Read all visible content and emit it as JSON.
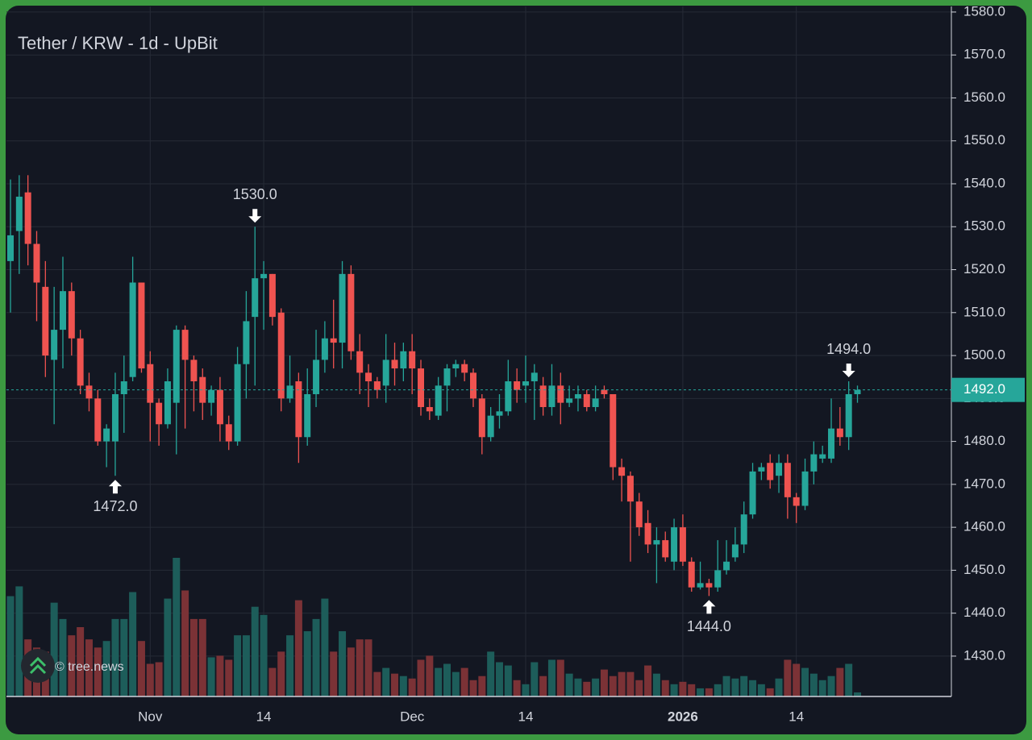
{
  "chart_data": {
    "type": "candlestick",
    "title": "Tether / KRW - 1d - UpBit",
    "watermark": "© tree.news",
    "categories": [
      null,
      null,
      null,
      null,
      null,
      null,
      null,
      null,
      null,
      null,
      null,
      null,
      null,
      null,
      null,
      null,
      "Nov",
      null,
      null,
      null,
      null,
      null,
      null,
      null,
      null,
      null,
      null,
      null,
      null,
      "14",
      null,
      null,
      null,
      null,
      null,
      null,
      null,
      null,
      null,
      null,
      null,
      null,
      null,
      null,
      null,
      null,
      "Dec",
      null,
      null,
      null,
      null,
      null,
      null,
      null,
      null,
      null,
      null,
      null,
      null,
      "14",
      null,
      null,
      null,
      null,
      null,
      null,
      null,
      null,
      null,
      null,
      null,
      null,
      null,
      null,
      null,
      null,
      null,
      "2026",
      null,
      null,
      null,
      null,
      null,
      null,
      null,
      null,
      null,
      null,
      null,
      null,
      "14",
      null,
      null,
      null,
      null,
      null,
      null,
      null
    ],
    "open": [
      1522,
      1529,
      1538,
      1526,
      1516,
      1499,
      1506,
      1515,
      1504,
      1493,
      1490,
      1480,
      1480,
      1491,
      1495,
      1517,
      1498,
      1489,
      1484,
      1489,
      1506,
      1499,
      1495,
      1489,
      1492,
      1484,
      1480,
      1498,
      1509,
      1518,
      1519,
      1510,
      1490,
      1494,
      1481,
      1491,
      1499,
      1504,
      1503,
      1519,
      1501,
      1496,
      1494,
      1493,
      1499,
      1497,
      1501,
      1497,
      1488,
      1486,
      1493,
      1497,
      1498,
      1496,
      1490,
      1481,
      1486,
      1487,
      1494,
      1493,
      1494,
      1493,
      1488,
      1493,
      1489,
      1490,
      1491,
      1488,
      1492,
      1491,
      1474,
      1472,
      1466,
      1461,
      1456,
      1457,
      1452,
      1460,
      1452,
      1446,
      1447,
      1446,
      1450,
      1453,
      1456,
      1463,
      1473,
      1475,
      1472,
      1475,
      1467,
      1465,
      1473,
      1476,
      1476,
      1483,
      1481,
      1491
    ],
    "high": [
      1541,
      1542,
      1542,
      1529,
      1522,
      1516,
      1523,
      1517,
      1506,
      1496,
      1492,
      1484,
      1496,
      1500,
      1523,
      1517,
      1501,
      1490,
      1497,
      1507,
      1507,
      1500,
      1497,
      1493,
      1495,
      1486,
      1502,
      1515,
      1530,
      1522,
      1519,
      1511,
      1500,
      1496,
      1497,
      1506,
      1508,
      1513,
      1522,
      1521,
      1505,
      1498,
      1495,
      1505,
      1503,
      1503,
      1505,
      1499,
      1490,
      1495,
      1498,
      1499,
      1499,
      1497,
      1491,
      1488,
      1491,
      1499,
      1497,
      1500,
      1498,
      1495,
      1498,
      1496,
      1493,
      1493,
      1492,
      1493,
      1493,
      1491,
      1476,
      1473,
      1468,
      1464,
      1460,
      1459,
      1462,
      1463,
      1453,
      1452,
      1448,
      1457,
      1457,
      1460,
      1466,
      1475,
      1475,
      1477,
      1477,
      1477,
      1468,
      1476,
      1480,
      1479,
      1490,
      1488,
      1494,
      1493
    ],
    "low": [
      1510,
      1519,
      1521,
      1508,
      1495,
      1484,
      1497,
      1500,
      1491,
      1487,
      1479,
      1474,
      1472,
      1482,
      1494,
      1496,
      1480,
      1479,
      1483,
      1477,
      1483,
      1487,
      1485,
      1486,
      1480,
      1478,
      1479,
      1490,
      1493,
      1506,
      1507,
      1487,
      1489,
      1475,
      1479,
      1488,
      1496,
      1497,
      1497,
      1499,
      1491,
      1488,
      1490,
      1489,
      1493,
      1494,
      1491,
      1486,
      1485,
      1485,
      1487,
      1495,
      1494,
      1488,
      1477,
      1480,
      1483,
      1486,
      1489,
      1489,
      1485,
      1486,
      1486,
      1484,
      1488,
      1487,
      1487,
      1487,
      1490,
      1471,
      1466,
      1452,
      1458,
      1454,
      1447,
      1452,
      1450,
      1451,
      1445,
      1445.5,
      1444,
      1445,
      1449,
      1452,
      1454,
      1462,
      1471,
      1469,
      1468,
      1462,
      1461,
      1464,
      1470,
      1475,
      1475,
      1479,
      1478,
      1489
    ],
    "close": [
      1528,
      1537,
      1526,
      1517,
      1500,
      1506,
      1515,
      1504,
      1493,
      1490,
      1480,
      1483,
      1491,
      1494,
      1517,
      1497,
      1489,
      1484,
      1494,
      1506,
      1499,
      1494,
      1489,
      1492,
      1484,
      1480,
      1498,
      1508,
      1518,
      1519,
      1509,
      1490,
      1493,
      1481,
      1491,
      1499,
      1504,
      1503,
      1519,
      1501,
      1496,
      1494,
      1492,
      1499,
      1497,
      1501,
      1497,
      1488,
      1487,
      1493,
      1497,
      1498,
      1496,
      1490,
      1481,
      1486,
      1487,
      1494,
      1492,
      1494,
      1496,
      1488,
      1493,
      1489,
      1490,
      1491,
      1488,
      1490,
      1491,
      1474,
      1472,
      1466,
      1460,
      1456,
      1457,
      1453,
      1460,
      1452,
      1446,
      1447,
      1446,
      1450,
      1452,
      1456,
      1463,
      1473,
      1474,
      1471,
      1475,
      1467,
      1465,
      1473,
      1477,
      1477,
      1483,
      1481,
      1491,
      1492
    ],
    "volume": [
      123,
      135,
      70,
      60,
      55,
      115,
      95,
      75,
      85,
      70,
      60,
      68,
      95,
      95,
      128,
      68,
      40,
      42,
      120,
      170,
      130,
      95,
      95,
      48,
      50,
      45,
      75,
      75,
      110,
      100,
      35,
      55,
      75,
      118,
      80,
      95,
      120,
      55,
      80,
      60,
      70,
      70,
      30,
      35,
      28,
      25,
      22,
      45,
      50,
      35,
      40,
      30,
      35,
      20,
      25,
      55,
      42,
      38,
      20,
      15,
      42,
      25,
      45,
      45,
      28,
      22,
      18,
      22,
      33,
      25,
      30,
      30,
      20,
      38,
      28,
      20,
      15,
      18,
      15,
      10,
      10,
      15,
      25,
      22,
      25,
      20,
      15,
      10,
      22,
      45,
      40,
      35,
      28,
      20,
      25,
      35,
      40,
      5
    ],
    "up_color": "#26a69a",
    "down_color": "#ef5350",
    "volume_up_color": "#1d5d5a",
    "volume_down_color": "#7b3236",
    "ylim": [
      1420.6,
      1581.3
    ],
    "yticks": [
      {
        "value": 1430,
        "label": "1430.0"
      },
      {
        "value": 1440,
        "label": "1440.0"
      },
      {
        "value": 1450,
        "label": "1450.0"
      },
      {
        "value": 1460,
        "label": "1460.0"
      },
      {
        "value": 1470,
        "label": "1470.0"
      },
      {
        "value": 1480,
        "label": "1480.0"
      },
      {
        "value": 1490,
        "label": "1490.0"
      },
      {
        "value": 1500,
        "label": "1500.0"
      },
      {
        "value": 1510,
        "label": "1510.0"
      },
      {
        "value": 1520,
        "label": "1520.0"
      },
      {
        "value": 1530,
        "label": "1530.0"
      },
      {
        "value": 1540,
        "label": "1540.0"
      },
      {
        "value": 1550,
        "label": "1550.0"
      },
      {
        "value": 1560,
        "label": "1560.0"
      },
      {
        "value": 1570,
        "label": "1570.0"
      },
      {
        "value": 1580,
        "label": "1580.0"
      }
    ],
    "grid": true,
    "annotations": [
      {
        "value": 1530,
        "label": "1530.0",
        "at": "high"
      },
      {
        "value": 1472,
        "label": "1472.0",
        "at": "low"
      },
      {
        "value": 1444,
        "label": "1444.0",
        "at": "low"
      },
      {
        "value": 1494,
        "label": "1494.0",
        "at": "high"
      }
    ],
    "last_price": {
      "value": 1492,
      "label": "1492.0",
      "color": "#26a69a"
    }
  }
}
